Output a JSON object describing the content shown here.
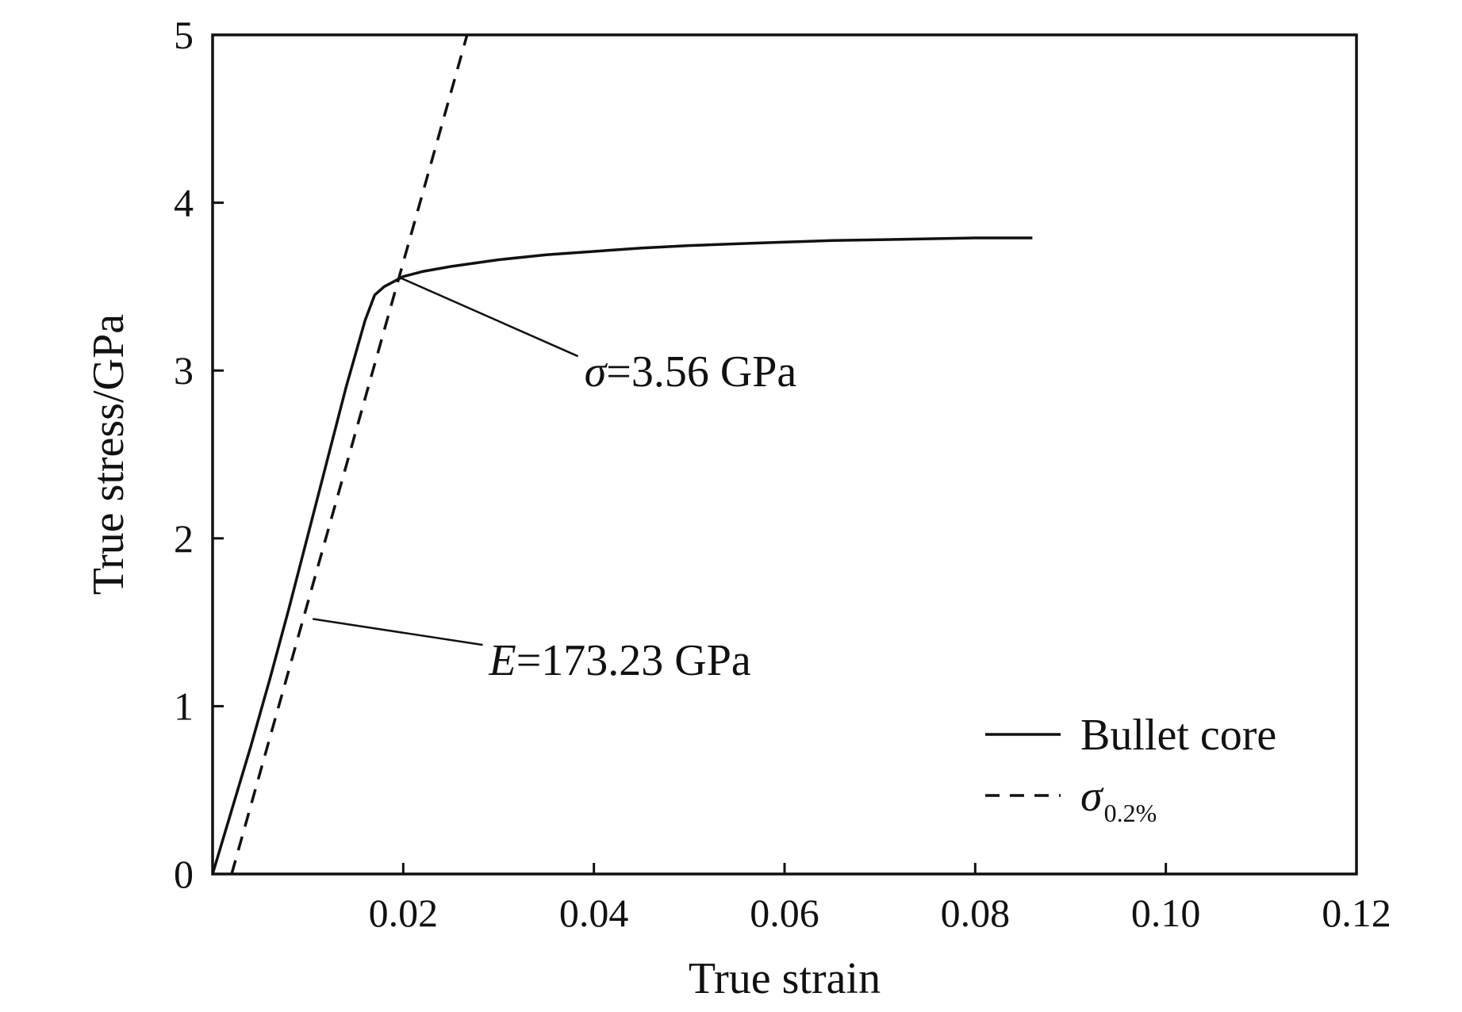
{
  "chart_data": {
    "type": "line",
    "xlabel": "True strain",
    "ylabel": "True stress/GPa",
    "xlim": [
      0,
      0.12
    ],
    "ylim": [
      0,
      5
    ],
    "x_ticks": [
      0.02,
      0.04,
      0.06,
      0.08,
      0.1,
      0.12
    ],
    "x_tick_labels": [
      "0.02",
      "0.04",
      "0.06",
      "0.08",
      "0.10",
      "0.12"
    ],
    "y_ticks": [
      0,
      1,
      2,
      3,
      4,
      5
    ],
    "y_tick_labels": [
      "0",
      "1",
      "2",
      "3",
      "4",
      "5"
    ],
    "grid": false,
    "legend_position": "bottom-right",
    "series": [
      {
        "name": "Bullet core",
        "style": "solid",
        "x": [
          0,
          0.002,
          0.004,
          0.006,
          0.008,
          0.01,
          0.012,
          0.014,
          0.016,
          0.017,
          0.018,
          0.019,
          0.02,
          0.022,
          0.025,
          0.03,
          0.035,
          0.04,
          0.045,
          0.05,
          0.055,
          0.06,
          0.065,
          0.07,
          0.075,
          0.08,
          0.086
        ],
        "y": [
          0,
          0.38,
          0.76,
          1.16,
          1.58,
          2.02,
          2.46,
          2.9,
          3.3,
          3.45,
          3.5,
          3.53,
          3.56,
          3.59,
          3.62,
          3.66,
          3.69,
          3.71,
          3.73,
          3.745,
          3.755,
          3.765,
          3.775,
          3.78,
          3.785,
          3.79,
          3.79
        ]
      },
      {
        "name": "σ0.2%",
        "name_main": "σ",
        "name_sub": "0.2%",
        "style": "dashed",
        "x": [
          0.002,
          0.0267
        ],
        "y": [
          0,
          5
        ]
      }
    ],
    "annotations": [
      {
        "label_main": "σ",
        "label_rest": "=3.56 GPa",
        "point": [
          0.0198,
          3.55
        ],
        "text_at": [
          0.039,
          3.0
        ]
      },
      {
        "label_main": "E",
        "label_rest": "=173.23 GPa",
        "point": [
          0.0105,
          1.52
        ],
        "text_at": [
          0.029,
          1.28
        ]
      }
    ]
  }
}
